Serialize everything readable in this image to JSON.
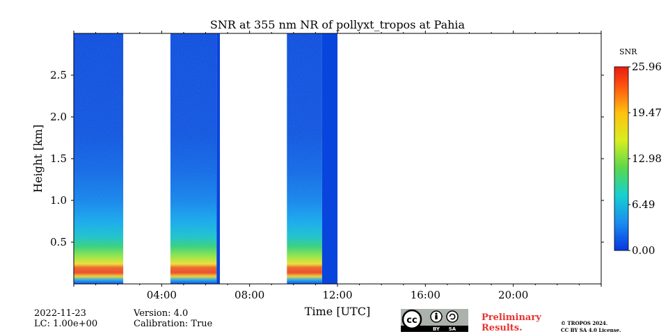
{
  "chart_data": {
    "type": "heatmap",
    "title": "SNR at 355 nm NR of pollyxt_tropos at Pahia",
    "xlabel": "Time [UTC]",
    "ylabel": "Height [km]",
    "xlim": [
      0,
      24
    ],
    "ylim": [
      0,
      3.0
    ],
    "x_ticks": [
      {
        "value": 4,
        "label": "04:00"
      },
      {
        "value": 8,
        "label": "08:00"
      },
      {
        "value": 12,
        "label": "12:00"
      },
      {
        "value": 16,
        "label": "16:00"
      },
      {
        "value": 20,
        "label": "20:00"
      }
    ],
    "y_ticks": [
      {
        "value": 0.5,
        "label": "0.5"
      },
      {
        "value": 1.0,
        "label": "1.0"
      },
      {
        "value": 1.5,
        "label": "1.5"
      },
      {
        "value": 2.0,
        "label": "2.0"
      },
      {
        "value": 2.5,
        "label": "2.5"
      }
    ],
    "colorbar": {
      "label": "SNR",
      "min": 0.0,
      "max": 25.96,
      "ticks": [
        "0.00",
        "6.49",
        "12.98",
        "19.47",
        "25.96"
      ]
    },
    "segments": [
      {
        "start": 0.0,
        "end": 2.25,
        "type": "data"
      },
      {
        "start": 4.4,
        "end": 6.5,
        "type": "data"
      },
      {
        "start": 6.5,
        "end": 6.65,
        "type": "low"
      },
      {
        "start": 9.7,
        "end": 11.3,
        "type": "data"
      },
      {
        "start": 11.3,
        "end": 12.0,
        "type": "low"
      }
    ]
  },
  "meta": {
    "date": "2022-11-23",
    "lc": "LC: 1.00e+00",
    "version": "Version: 4.0",
    "calibration": "Calibration: True",
    "preliminary_1": "Preliminary",
    "preliminary_2": "Results.",
    "copyright_1": "© TROPOS 2024.",
    "copyright_2": "CC BY SA 4.0 License.",
    "cc_icon": "cc-by-sa-license-icon",
    "cc_by": "BY",
    "cc_sa": "SA"
  }
}
